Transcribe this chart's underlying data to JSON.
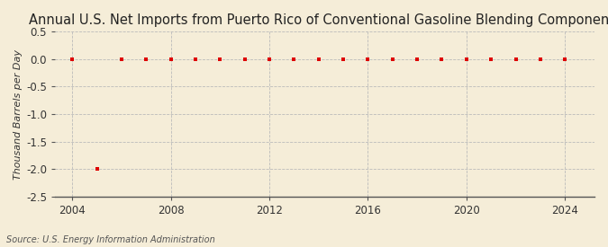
{
  "title": "Annual U.S. Net Imports from Puerto Rico of Conventional Gasoline Blending Components",
  "ylabel": "Thousand Barrels per Day",
  "source": "Source: U.S. Energy Information Administration",
  "years": [
    2004,
    2005,
    2006,
    2007,
    2008,
    2009,
    2010,
    2011,
    2012,
    2013,
    2014,
    2015,
    2016,
    2017,
    2018,
    2019,
    2020,
    2021,
    2022,
    2023,
    2024
  ],
  "values": [
    0.0,
    -2.0,
    0.0,
    0.0,
    0.0,
    0.0,
    0.0,
    0.0,
    0.0,
    0.0,
    0.0,
    0.0,
    0.0,
    0.0,
    0.0,
    0.0,
    0.0,
    0.0,
    0.0,
    0.0,
    0.0
  ],
  "marker_color": "#DD0000",
  "marker": "s",
  "marker_size": 3.5,
  "background_color": "#F5EDD8",
  "plot_bg_color": "#F5EDD8",
  "grid_color": "#BBBBBB",
  "grid_style": "--",
  "xlim": [
    2003.3,
    2025.2
  ],
  "ylim": [
    -2.5,
    0.5
  ],
  "yticks": [
    0.5,
    0.0,
    -0.5,
    -1.0,
    -1.5,
    -2.0,
    -2.5
  ],
  "xticks": [
    2004,
    2008,
    2012,
    2016,
    2020,
    2024
  ],
  "title_fontsize": 10.5,
  "ylabel_fontsize": 8,
  "tick_fontsize": 8.5,
  "source_fontsize": 7
}
